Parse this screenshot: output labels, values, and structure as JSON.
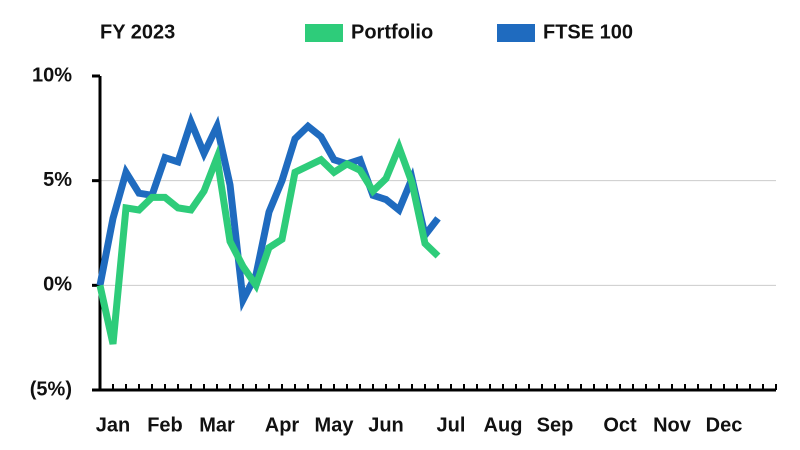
{
  "chart_data": {
    "type": "line",
    "title": "FY 2023",
    "x": [
      0,
      1,
      2,
      3,
      4,
      5,
      6,
      7,
      8,
      9,
      10,
      11,
      12,
      13,
      14,
      15,
      16,
      17,
      18,
      19,
      20,
      21,
      22,
      23,
      24,
      25,
      26
    ],
    "series": [
      {
        "name": "Portfolio",
        "color": "#2ecc7a",
        "values": [
          0,
          -2.8,
          3.7,
          3.6,
          4.2,
          4.2,
          3.7,
          3.6,
          4.5,
          6.1,
          2.1,
          0.9,
          0.0,
          1.8,
          2.2,
          5.4,
          5.7,
          6.0,
          5.4,
          5.8,
          5.5,
          4.5,
          5.1,
          6.6,
          4.9,
          2.0,
          1.4
        ]
      },
      {
        "name": "FTSE 100",
        "color": "#1f6bbf",
        "values": [
          0,
          3.2,
          5.4,
          4.4,
          4.3,
          6.1,
          5.9,
          7.8,
          6.3,
          7.6,
          4.8,
          -0.7,
          0.5,
          3.5,
          5.0,
          7.0,
          7.6,
          7.1,
          6.0,
          5.8,
          6.0,
          4.3,
          4.1,
          3.6,
          5.1,
          2.4,
          3.2
        ]
      }
    ],
    "xlim": [
      0,
      52
    ],
    "xticks": [
      {
        "value": 1,
        "label": "Jan"
      },
      {
        "value": 5,
        "label": "Feb"
      },
      {
        "value": 9,
        "label": "Mar"
      },
      {
        "value": 14,
        "label": "Apr"
      },
      {
        "value": 18,
        "label": "May"
      },
      {
        "value": 22,
        "label": "Jun"
      },
      {
        "value": 27,
        "label": "Jul"
      },
      {
        "value": 31,
        "label": "Aug"
      },
      {
        "value": 35,
        "label": "Sep"
      },
      {
        "value": 40,
        "label": "Oct"
      },
      {
        "value": 44,
        "label": "Nov"
      },
      {
        "value": 48,
        "label": "Dec"
      }
    ],
    "ylim": [
      -5,
      10
    ],
    "yticks": [
      {
        "value": 10,
        "label": "10%"
      },
      {
        "value": 5,
        "label": "5%"
      },
      {
        "value": 0,
        "label": "0%"
      },
      {
        "value": -5,
        "label": "(5%)"
      }
    ],
    "grid": true
  }
}
